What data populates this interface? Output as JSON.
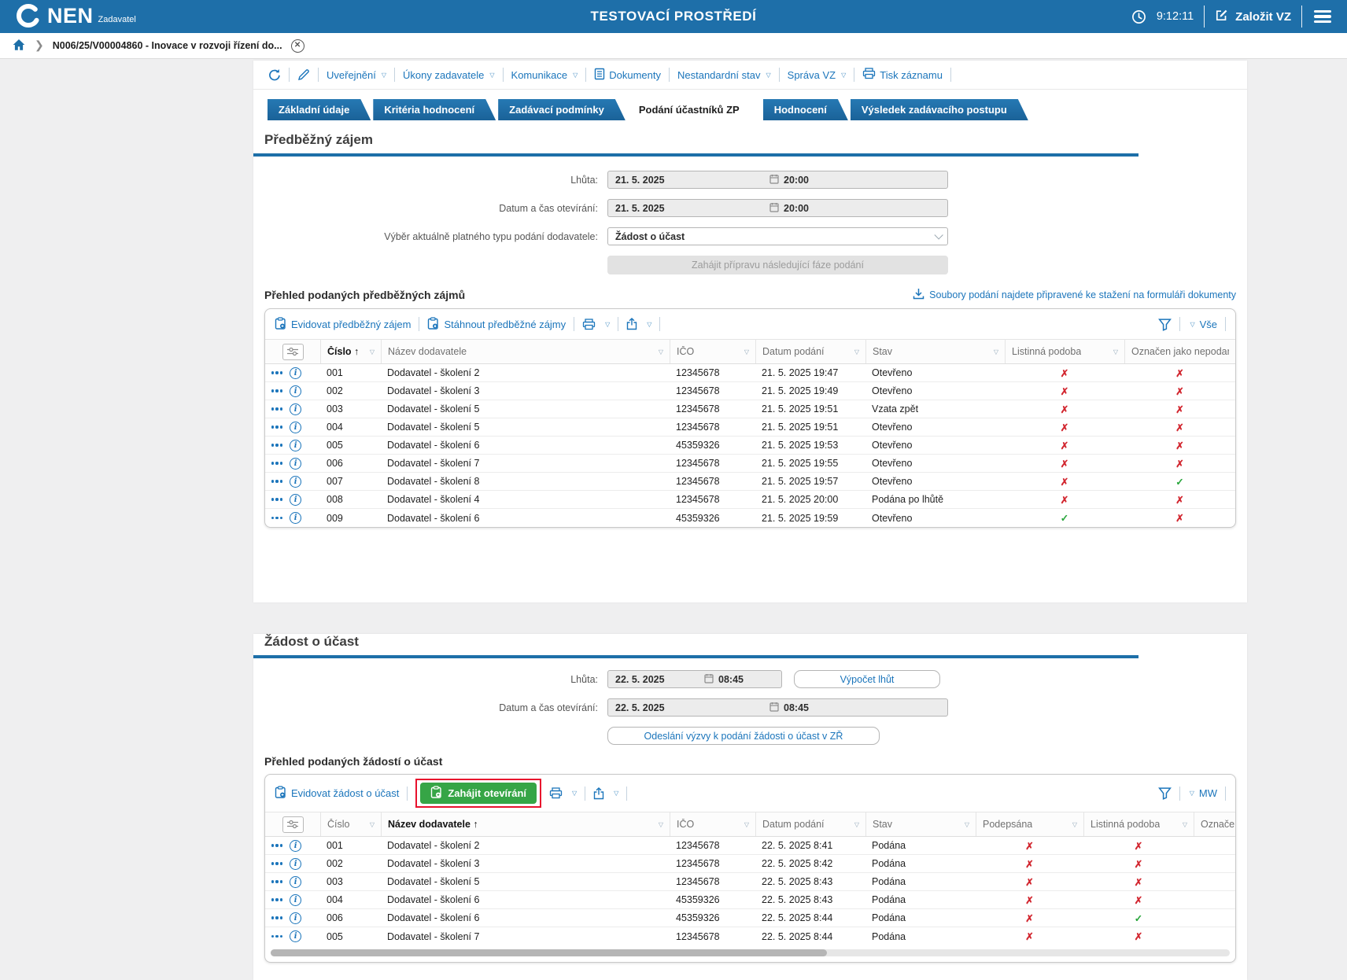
{
  "colors": {
    "topbar": "#1e6fa9",
    "accent": "#1d6fa8",
    "link": "#1b75bb",
    "green_button": "#36a546",
    "check": "#29a63c",
    "cross": "#d22730",
    "annotation_box": "#e8112d"
  },
  "topbar": {
    "logo": "NEN",
    "logo_sub": "Zadavatel",
    "title": "TESTOVACÍ PROSTŘEDÍ",
    "time": "9:12:11",
    "new_vz": "Založit VZ"
  },
  "breadcrumb": {
    "label": "N006/25/V00004860 - Inovace v rozvoji řízení do...",
    "close": "x"
  },
  "toolbar": {
    "items": [
      {
        "label": "Uveřejnění",
        "dropdown": true
      },
      {
        "label": "Úkony zadavatele",
        "dropdown": true
      },
      {
        "label": "Komunikace",
        "dropdown": true
      },
      {
        "label": "Dokumenty",
        "dropdown": false
      },
      {
        "label": "Nestandardní stav",
        "dropdown": true
      },
      {
        "label": "Správa VZ",
        "dropdown": true
      },
      {
        "label": "Tisk záznamu",
        "dropdown": false
      }
    ]
  },
  "tabs": [
    {
      "label": "Základní údaje",
      "active": false
    },
    {
      "label": "Kritéria hodnocení",
      "active": false
    },
    {
      "label": "Zadávací podmínky",
      "active": false
    },
    {
      "label": "Podání účastníků ZP",
      "active": true
    },
    {
      "label": "Hodnocení",
      "active": false
    },
    {
      "label": "Výsledek zadávacího postupu",
      "active": false
    }
  ],
  "section1": {
    "title": "Předběžný zájem",
    "form": {
      "lhuta_label": "Lhůta:",
      "lhuta_date": "21. 5. 2025",
      "lhuta_time": "20:00",
      "otevirani_label": "Datum a čas otevírání:",
      "otevirani_date": "21. 5. 2025",
      "otevirani_time": "20:00",
      "vyber_label": "Výběr aktuálně platného typu podání dodavatele:",
      "vyber_value": "Žádost o účast",
      "phase_button": "Zahájit přípravu následující fáze podání"
    },
    "overview_title": "Přehled podaných předběžných zájmů",
    "download_link": "Soubory podání najdete připravené ke stažení na formuláři dokumenty",
    "table": {
      "action1": "Evidovat předběžný zájem",
      "action2": "Stáhnout předběžné zájmy",
      "filter_label": "Vše",
      "columns": [
        {
          "key": "cislo",
          "label": "Číslo",
          "sorted": true
        },
        {
          "key": "nazev",
          "label": "Název dodavatele"
        },
        {
          "key": "ico",
          "label": "IČO"
        },
        {
          "key": "datum",
          "label": "Datum podání"
        },
        {
          "key": "stav",
          "label": "Stav"
        },
        {
          "key": "listinna",
          "label": "Listinná podoba",
          "type": "bool"
        },
        {
          "key": "nepodany",
          "label": "Označen jako nepodaný",
          "type": "bool",
          "filter": false
        }
      ],
      "rows": [
        {
          "cislo": "001",
          "nazev": "Dodavatel - školení 2",
          "ico": "12345678",
          "datum": "21. 5. 2025 19:47",
          "stav": "Otevřeno",
          "listinna": false,
          "nepodany": false
        },
        {
          "cislo": "002",
          "nazev": "Dodavatel - školení 3",
          "ico": "12345678",
          "datum": "21. 5. 2025 19:49",
          "stav": "Otevřeno",
          "listinna": false,
          "nepodany": false
        },
        {
          "cislo": "003",
          "nazev": "Dodavatel - školení 5",
          "ico": "12345678",
          "datum": "21. 5. 2025 19:51",
          "stav": "Vzata zpět",
          "listinna": false,
          "nepodany": false
        },
        {
          "cislo": "004",
          "nazev": "Dodavatel - školení 5",
          "ico": "12345678",
          "datum": "21. 5. 2025 19:51",
          "stav": "Otevřeno",
          "listinna": false,
          "nepodany": false
        },
        {
          "cislo": "005",
          "nazev": "Dodavatel - školení 6",
          "ico": "45359326",
          "datum": "21. 5. 2025 19:53",
          "stav": "Otevřeno",
          "listinna": false,
          "nepodany": false
        },
        {
          "cislo": "006",
          "nazev": "Dodavatel - školení 7",
          "ico": "12345678",
          "datum": "21. 5. 2025 19:55",
          "stav": "Otevřeno",
          "listinna": false,
          "nepodany": false
        },
        {
          "cislo": "007",
          "nazev": "Dodavatel - školení 8",
          "ico": "12345678",
          "datum": "21. 5. 2025 19:57",
          "stav": "Otevřeno",
          "listinna": false,
          "nepodany": true
        },
        {
          "cislo": "008",
          "nazev": "Dodavatel - školení 4",
          "ico": "12345678",
          "datum": "21. 5. 2025 20:00",
          "stav": "Podána po lhůtě",
          "listinna": false,
          "nepodany": false
        },
        {
          "cislo": "009",
          "nazev": "Dodavatel - školení 6",
          "ico": "45359326",
          "datum": "21. 5. 2025 19:59",
          "stav": "Otevřeno",
          "listinna": true,
          "nepodany": false
        }
      ]
    }
  },
  "section2": {
    "title": "Žádost o účast",
    "form": {
      "lhuta_label": "Lhůta:",
      "lhuta_date": "22. 5. 2025",
      "lhuta_time": "08:45",
      "vypocet_button": "Výpočet lhůt",
      "otevirani_label": "Datum a čas otevírání:",
      "otevirani_date": "22. 5. 2025",
      "otevirani_time": "08:45",
      "send_button": "Odeslání výzvy k podání žádosti o účast v ZŘ"
    },
    "overview_title": "Přehled podaných žádostí o účast",
    "table": {
      "action1": "Evidovat žádost o účast",
      "action2": "Zahájit otevírání",
      "filter_label": "MW",
      "columns": [
        {
          "key": "cislo",
          "label": "Číslo"
        },
        {
          "key": "nazev",
          "label": "Název dodavatele",
          "sorted": true
        },
        {
          "key": "ico",
          "label": "IČO"
        },
        {
          "key": "datum",
          "label": "Datum podání"
        },
        {
          "key": "stav",
          "label": "Stav"
        },
        {
          "key": "podepsana",
          "label": "Podepsána",
          "type": "bool"
        },
        {
          "key": "listinna",
          "label": "Listinná podoba",
          "type": "bool"
        },
        {
          "key": "oznacen",
          "label": "Označen jako nepodaný",
          "type": "bool",
          "filter": false
        }
      ],
      "rows": [
        {
          "cislo": "001",
          "nazev": "Dodavatel - školení 2",
          "ico": "12345678",
          "datum": "22. 5. 2025 8:41",
          "stav": "Podána",
          "podepsana": false,
          "listinna": false,
          "oznacen": null
        },
        {
          "cislo": "002",
          "nazev": "Dodavatel - školení 3",
          "ico": "12345678",
          "datum": "22. 5. 2025 8:42",
          "stav": "Podána",
          "podepsana": false,
          "listinna": false,
          "oznacen": null
        },
        {
          "cislo": "003",
          "nazev": "Dodavatel - školení 5",
          "ico": "12345678",
          "datum": "22. 5. 2025 8:43",
          "stav": "Podána",
          "podepsana": false,
          "listinna": false,
          "oznacen": null
        },
        {
          "cislo": "004",
          "nazev": "Dodavatel - školení 6",
          "ico": "45359326",
          "datum": "22. 5. 2025 8:43",
          "stav": "Podána",
          "podepsana": false,
          "listinna": false,
          "oznacen": null
        },
        {
          "cislo": "006",
          "nazev": "Dodavatel - školení 6",
          "ico": "45359326",
          "datum": "22. 5. 2025 8:44",
          "stav": "Podána",
          "podepsana": false,
          "listinna": true,
          "oznacen": null
        },
        {
          "cislo": "005",
          "nazev": "Dodavatel - školení 7",
          "ico": "12345678",
          "datum": "22. 5. 2025 8:44",
          "stav": "Podána",
          "podepsana": false,
          "listinna": false,
          "oznacen": null
        }
      ]
    }
  }
}
